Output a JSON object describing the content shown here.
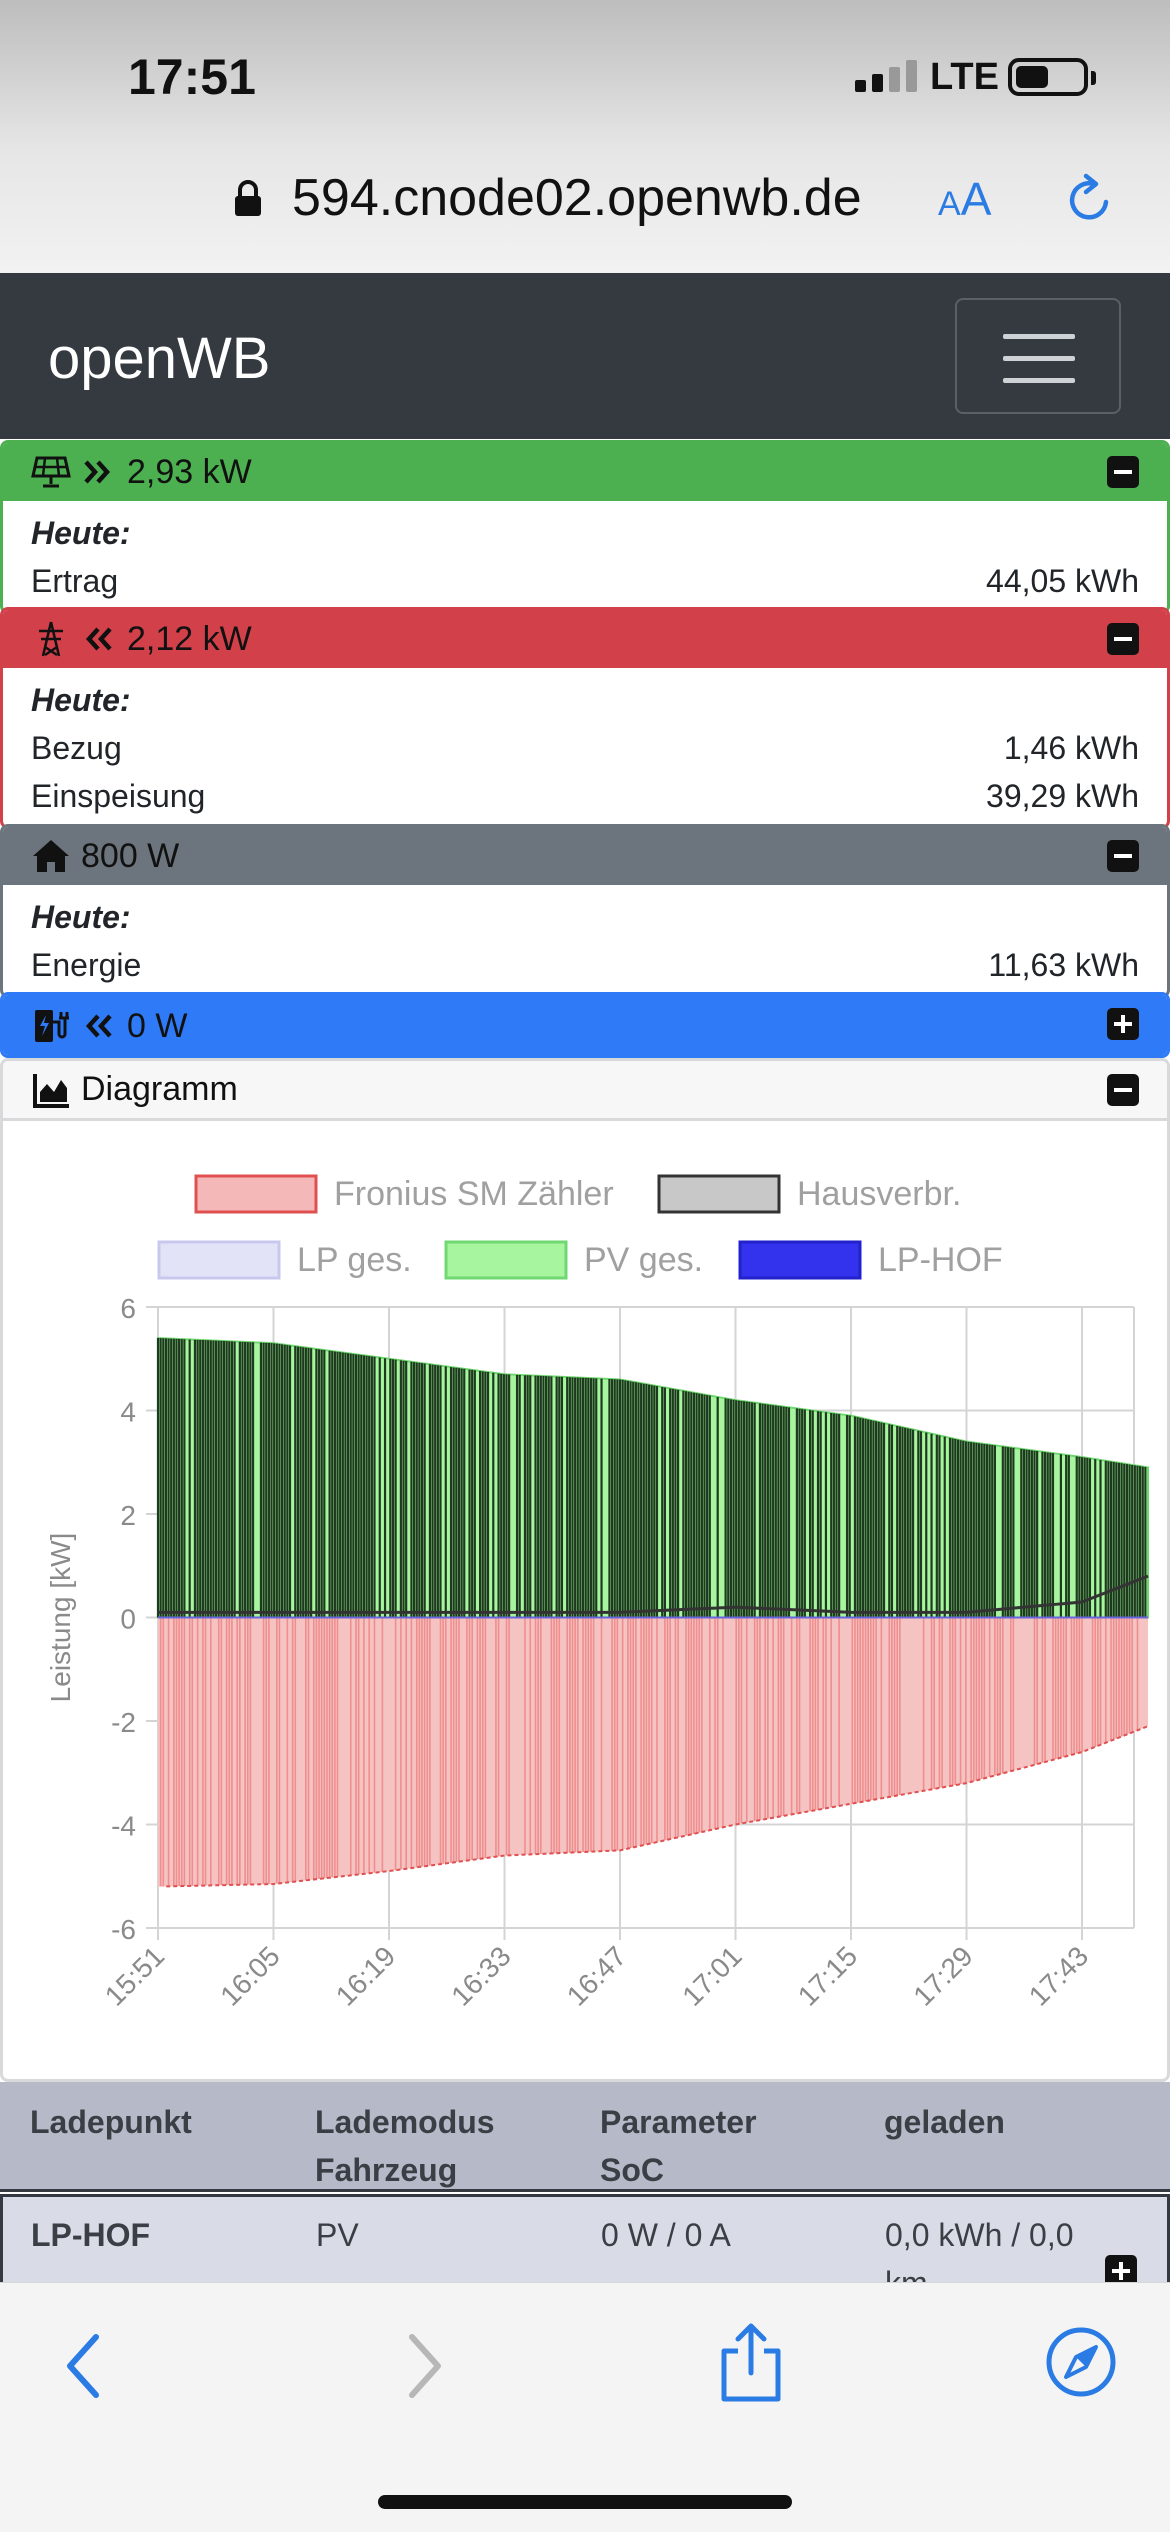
{
  "status_bar": {
    "time": "17:51",
    "network": "LTE"
  },
  "browser": {
    "url": "594.cnode02.openwb.de",
    "aa_label_small": "A",
    "aa_label_large": "A"
  },
  "navbar": {
    "brand": "openWB"
  },
  "pv_card": {
    "header_value": "2,93 kW",
    "heute": "Heute:",
    "rows": [
      {
        "label": "Ertrag",
        "value": "44,05 kWh"
      }
    ],
    "color": "#4caf50"
  },
  "grid_card": {
    "header_value": "2,12 kW",
    "heute": "Heute:",
    "rows": [
      {
        "label": "Bezug",
        "value": "1,46 kWh"
      },
      {
        "label": "Einspeisung",
        "value": "39,29 kWh"
      }
    ],
    "color": "#d2414a"
  },
  "house_card": {
    "header_value": "800 W",
    "heute": "Heute:",
    "rows": [
      {
        "label": "Energie",
        "value": "11,63 kWh"
      }
    ],
    "color": "#6c757d"
  },
  "lp_card": {
    "header_value": "0 W",
    "color": "#2f7af7"
  },
  "diagram_card": {
    "title": "Diagramm"
  },
  "chart_data": {
    "type": "area",
    "ylabel": "Leistung [kW]",
    "ylim": [
      -6,
      6
    ],
    "y_ticks": [
      "6",
      "4",
      "2",
      "0",
      "-2",
      "-4",
      "-6"
    ],
    "x_ticks": [
      "15:51",
      "16:05",
      "16:19",
      "16:33",
      "16:47",
      "17:01",
      "17:15",
      "17:29",
      "17:43"
    ],
    "grid": true,
    "legend_position": "top",
    "legend": [
      {
        "name": "Fronius SM Zähler",
        "fill": "#f4b8b8",
        "stroke": "#e05050"
      },
      {
        "name": "Hausverbr.",
        "fill": "#c8c8c8",
        "stroke": "#333333"
      },
      {
        "name": "LP ges.",
        "fill": "#e3e3f8",
        "stroke": "#c8c8ee"
      },
      {
        "name": "PV ges.",
        "fill": "#a8f5a0",
        "stroke": "#70d870"
      },
      {
        "name": "LP-HOF",
        "fill": "#3333ee",
        "stroke": "#2222cc"
      }
    ],
    "series": [
      {
        "name": "PV ges.",
        "x": [
          "15:51",
          "16:05",
          "16:19",
          "16:33",
          "16:47",
          "17:01",
          "17:15",
          "17:29",
          "17:43",
          "17:51"
        ],
        "values": [
          5.4,
          5.3,
          5.0,
          4.7,
          4.6,
          4.2,
          3.9,
          3.4,
          3.1,
          2.9
        ]
      },
      {
        "name": "Fronius SM Zähler",
        "x": [
          "15:51",
          "16:05",
          "16:19",
          "16:33",
          "16:47",
          "17:01",
          "17:15",
          "17:29",
          "17:43",
          "17:51"
        ],
        "values": [
          -5.2,
          -5.15,
          -4.9,
          -4.6,
          -4.5,
          -4.0,
          -3.6,
          -3.2,
          -2.6,
          -2.1
        ]
      },
      {
        "name": "Hausverbr.",
        "x": [
          "15:51",
          "16:05",
          "16:19",
          "16:33",
          "16:47",
          "17:01",
          "17:15",
          "17:29",
          "17:43",
          "17:51"
        ],
        "values": [
          0.1,
          0.1,
          0.1,
          0.1,
          0.1,
          0.2,
          0.1,
          0.1,
          0.3,
          0.8
        ]
      },
      {
        "name": "LP-HOF",
        "x": [
          "15:51",
          "17:51"
        ],
        "values": [
          0,
          0
        ]
      },
      {
        "name": "LP ges.",
        "x": [
          "15:51",
          "17:51"
        ],
        "values": [
          0,
          0
        ]
      }
    ]
  },
  "table": {
    "headers": [
      {
        "line1": "Ladepunkt",
        "line2": ""
      },
      {
        "line1": "Lademodus",
        "line2": "Fahrzeug"
      },
      {
        "line1": "Parameter",
        "line2": "SoC"
      },
      {
        "line1": "geladen",
        "line2": ""
      }
    ],
    "rows": [
      {
        "ladepunkt": "LP-HOF",
        "lademodus": "PV",
        "parameter": "0 W / 0 A",
        "geladen_line1": "0,0 kWh / 0,0",
        "geladen_line2": "km"
      }
    ]
  }
}
